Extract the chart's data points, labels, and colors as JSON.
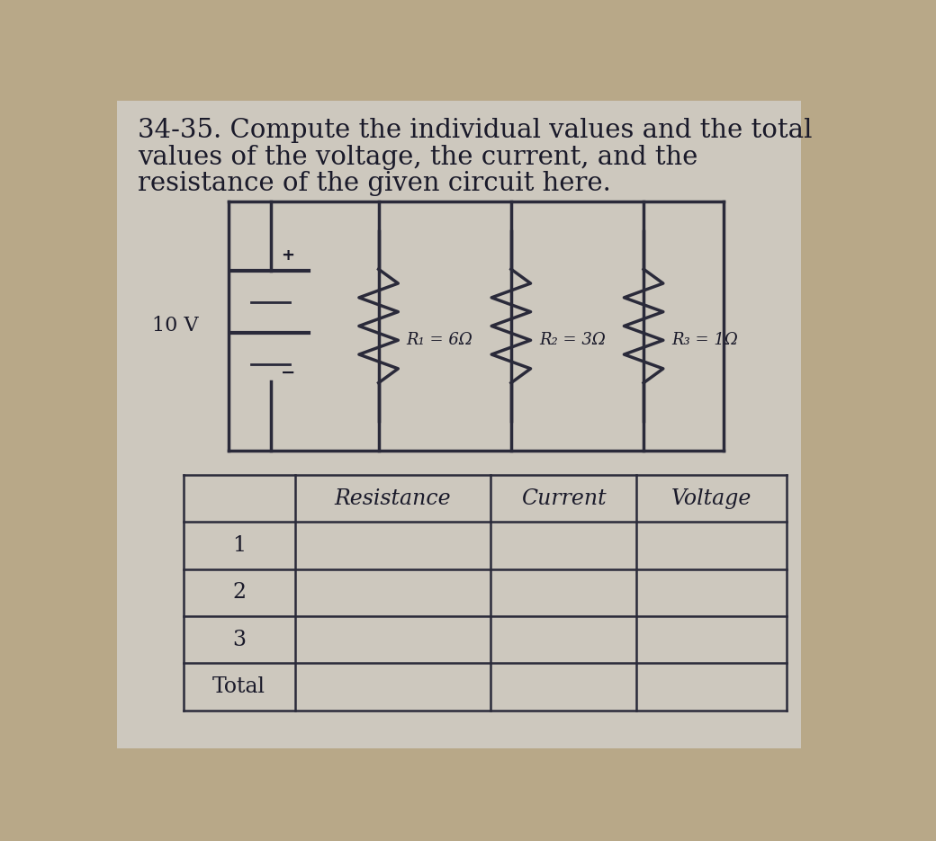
{
  "title_line1": "34-35. Compute the individual values and the total",
  "title_line2": "values of the voltage, the current, and the",
  "title_line3": "resistance of the given circuit here.",
  "voltage_label": "10 V",
  "R1_label": "R₁ = 6Ω",
  "R2_label": "R₂ = 3Ω",
  "R3_label": "R₃ = 1Ω",
  "table_col_headers": [
    "Resistance",
    "Current",
    "Voltage"
  ],
  "table_row_labels": [
    "1",
    "2",
    "3",
    "Total"
  ],
  "bg_color": "#b8a888",
  "paper_color": "#cdc8be",
  "line_color": "#2a2a3a",
  "text_color": "#1a1a2a",
  "title_fontsize": 21,
  "label_fontsize": 13,
  "table_header_fontsize": 17,
  "table_row_fontsize": 17
}
